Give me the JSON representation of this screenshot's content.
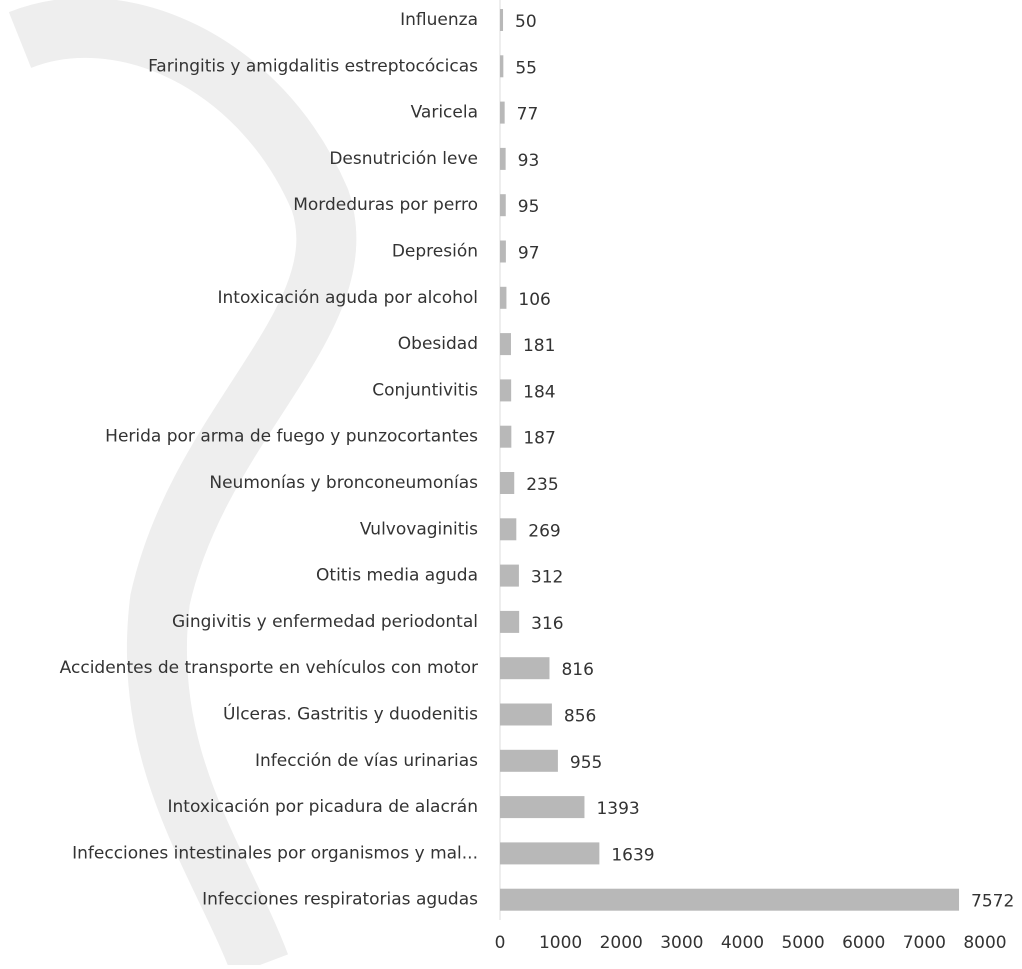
{
  "chart_data": {
    "type": "bar",
    "orientation": "horizontal",
    "categories": [
      "Influenza",
      "Faringitis y amigdalitis estreptocócicas",
      "Varicela",
      "Desnutrición leve",
      "Mordeduras por perro",
      "Depresión",
      "Intoxicación aguda por alcohol",
      "Obesidad",
      "Conjuntivitis",
      "Herida por arma de fuego y punzocortantes",
      "Neumonías y bronconeumonías",
      "Vulvovaginitis",
      "Otitis media aguda",
      "Gingivitis y enfermedad periodontal",
      "Accidentes de transporte en vehículos con motor",
      "Úlceras. Gastritis y duodenitis",
      "Infección de vías urinarias",
      "Intoxicación por picadura de alacrán",
      "Infecciones intestinales por organismos y mal...",
      "Infecciones respiratorias agudas"
    ],
    "values": [
      50,
      55,
      77,
      93,
      95,
      97,
      106,
      181,
      184,
      187,
      235,
      269,
      312,
      316,
      816,
      856,
      955,
      1393,
      1639,
      7572
    ],
    "color": "#b8b8b8",
    "xlim": [
      0,
      8000
    ],
    "xticks": [
      0,
      1000,
      2000,
      3000,
      4000,
      5000,
      6000,
      7000,
      8000
    ]
  }
}
